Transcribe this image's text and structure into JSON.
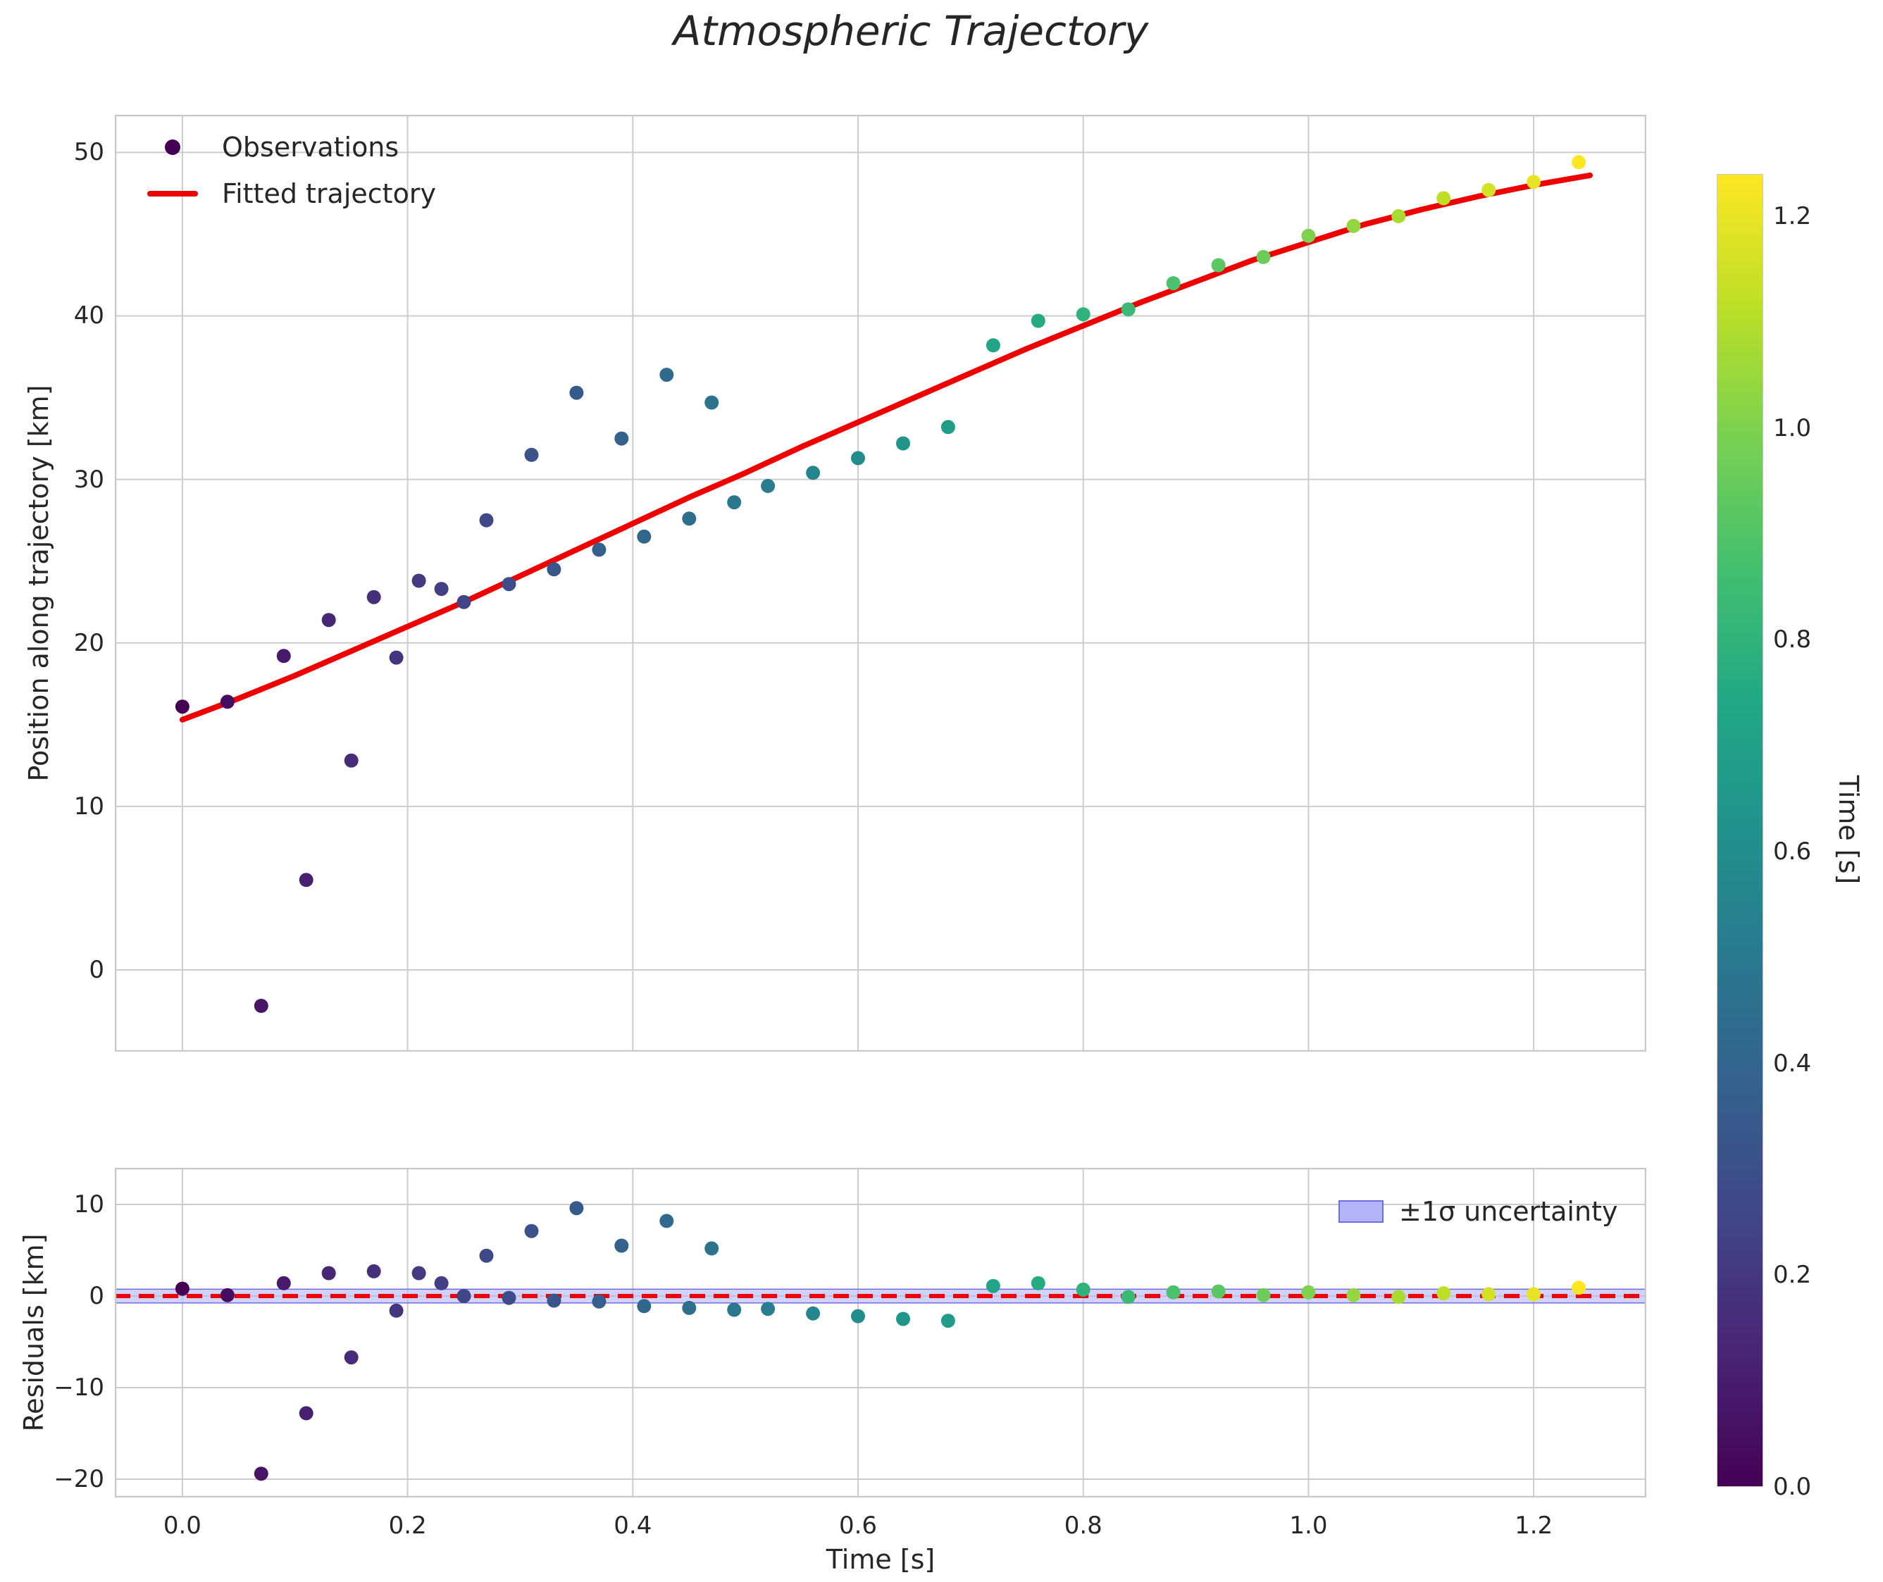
{
  "figure": {
    "colors": {
      "background": "#ffffff",
      "grid": "#cccccc",
      "spine": "#c8c8c8",
      "text": "#262626"
    }
  },
  "chart_data": {
    "type": "scatter",
    "title": "Atmospheric Trajectory",
    "xlabel": "Time [s]",
    "xlim": [
      -0.06,
      1.3
    ],
    "x_ticks": {
      "values": [
        0.0,
        0.2,
        0.4,
        0.6,
        0.8,
        1.0,
        1.2
      ],
      "labels": [
        "0.0",
        "0.2",
        "0.4",
        "0.6",
        "0.8",
        "1.0",
        "1.2"
      ]
    },
    "panels": [
      {
        "name": "trajectory",
        "ylabel": "Position along trajectory [km]",
        "ylim": [
          -5.0,
          52.3
        ],
        "y_ticks": {
          "values": [
            0,
            10,
            20,
            30,
            40,
            50
          ],
          "labels": [
            "0",
            "10",
            "20",
            "30",
            "40",
            "50"
          ]
        },
        "legend": [
          {
            "label": "Observations",
            "marker": "dot"
          },
          {
            "label": "Fitted trajectory",
            "marker": "line"
          }
        ],
        "observations": {
          "t": [
            0.0,
            0.04,
            0.07,
            0.09,
            0.11,
            0.13,
            0.15,
            0.17,
            0.19,
            0.21,
            0.23,
            0.25,
            0.27,
            0.29,
            0.31,
            0.33,
            0.35,
            0.37,
            0.39,
            0.41,
            0.43,
            0.45,
            0.47,
            0.49,
            0.52,
            0.56,
            0.6,
            0.64,
            0.68,
            0.72,
            0.76,
            0.8,
            0.84,
            0.88,
            0.92,
            0.96,
            1.0,
            1.04,
            1.08,
            1.12,
            1.16,
            1.2,
            1.24
          ],
          "position_km": [
            16.1,
            16.4,
            -2.2,
            19.2,
            5.5,
            21.4,
            12.8,
            22.8,
            19.1,
            23.8,
            23.3,
            22.5,
            27.5,
            23.6,
            31.5,
            24.5,
            35.3,
            25.7,
            32.5,
            26.5,
            36.4,
            27.6,
            34.7,
            28.6,
            29.6,
            30.4,
            31.3,
            32.2,
            33.2,
            38.2,
            39.7,
            40.1,
            40.4,
            42.0,
            43.1,
            43.6,
            44.9,
            45.5,
            46.1,
            47.2,
            47.7,
            48.2,
            49.4
          ]
        },
        "fitted": {
          "color": "#ee0000",
          "linewidth": 8,
          "t": [
            0.0,
            0.05,
            0.1,
            0.15,
            0.2,
            0.25,
            0.3,
            0.35,
            0.4,
            0.45,
            0.5,
            0.55,
            0.6,
            0.65,
            0.7,
            0.75,
            0.8,
            0.85,
            0.9,
            0.95,
            1.0,
            1.05,
            1.1,
            1.15,
            1.2,
            1.25
          ],
          "position_km": [
            15.3,
            16.6,
            18.0,
            19.5,
            21.0,
            22.5,
            24.1,
            25.7,
            27.3,
            28.9,
            30.4,
            32.0,
            33.5,
            35.0,
            36.5,
            38.0,
            39.4,
            40.8,
            42.1,
            43.4,
            44.5,
            45.6,
            46.5,
            47.3,
            48.0,
            48.6
          ]
        }
      },
      {
        "name": "residuals",
        "ylabel": "Residuals [km]",
        "ylim": [
          -22.0,
          14.0
        ],
        "y_ticks": {
          "values": [
            -20,
            -10,
            0,
            10
          ],
          "labels": [
            "−20",
            "−10",
            "0",
            "10"
          ]
        },
        "residuals": {
          "t": [
            0.0,
            0.04,
            0.07,
            0.09,
            0.11,
            0.13,
            0.15,
            0.17,
            0.19,
            0.21,
            0.23,
            0.25,
            0.27,
            0.29,
            0.31,
            0.33,
            0.35,
            0.37,
            0.39,
            0.41,
            0.43,
            0.45,
            0.47,
            0.49,
            0.52,
            0.56,
            0.6,
            0.64,
            0.68,
            0.72,
            0.76,
            0.8,
            0.84,
            0.88,
            0.92,
            0.96,
            1.0,
            1.04,
            1.08,
            1.12,
            1.16,
            1.2,
            1.24
          ],
          "residual_km": [
            0.8,
            0.1,
            -19.4,
            1.4,
            -12.8,
            2.5,
            -6.7,
            2.7,
            -1.6,
            2.5,
            1.4,
            0.0,
            4.4,
            -0.2,
            7.1,
            -0.5,
            9.6,
            -0.6,
            5.5,
            -1.1,
            8.2,
            -1.3,
            5.2,
            -1.5,
            -1.4,
            -1.9,
            -2.2,
            -2.5,
            -2.7,
            1.1,
            1.4,
            0.7,
            -0.1,
            0.4,
            0.5,
            0.1,
            0.4,
            0.1,
            -0.1,
            0.3,
            0.2,
            0.2,
            0.9
          ]
        },
        "uncertainty_band": {
          "label": "±1σ uncertainty",
          "half_width_km": 0.75,
          "fill": "#b4b4f7",
          "edge": "#6e6ee0"
        },
        "zero_line": {
          "color": "#ee0000",
          "dash": [
            22,
            12
          ],
          "width": 6
        }
      }
    ],
    "colorbar": {
      "label": "Time [s]",
      "colormap": "viridis",
      "vmin": 0.0,
      "vmax": 1.24,
      "ticks": {
        "values": [
          0.0,
          0.2,
          0.4,
          0.6,
          0.8,
          1.0,
          1.2
        ],
        "labels": [
          "0.0",
          "0.2",
          "0.4",
          "0.6",
          "0.8",
          "1.0",
          "1.2"
        ]
      },
      "stops": [
        "#440154",
        "#482475",
        "#414487",
        "#355f8d",
        "#2a788e",
        "#21918c",
        "#22a884",
        "#44bf70",
        "#7ad151",
        "#bddf26",
        "#fde725"
      ]
    }
  }
}
